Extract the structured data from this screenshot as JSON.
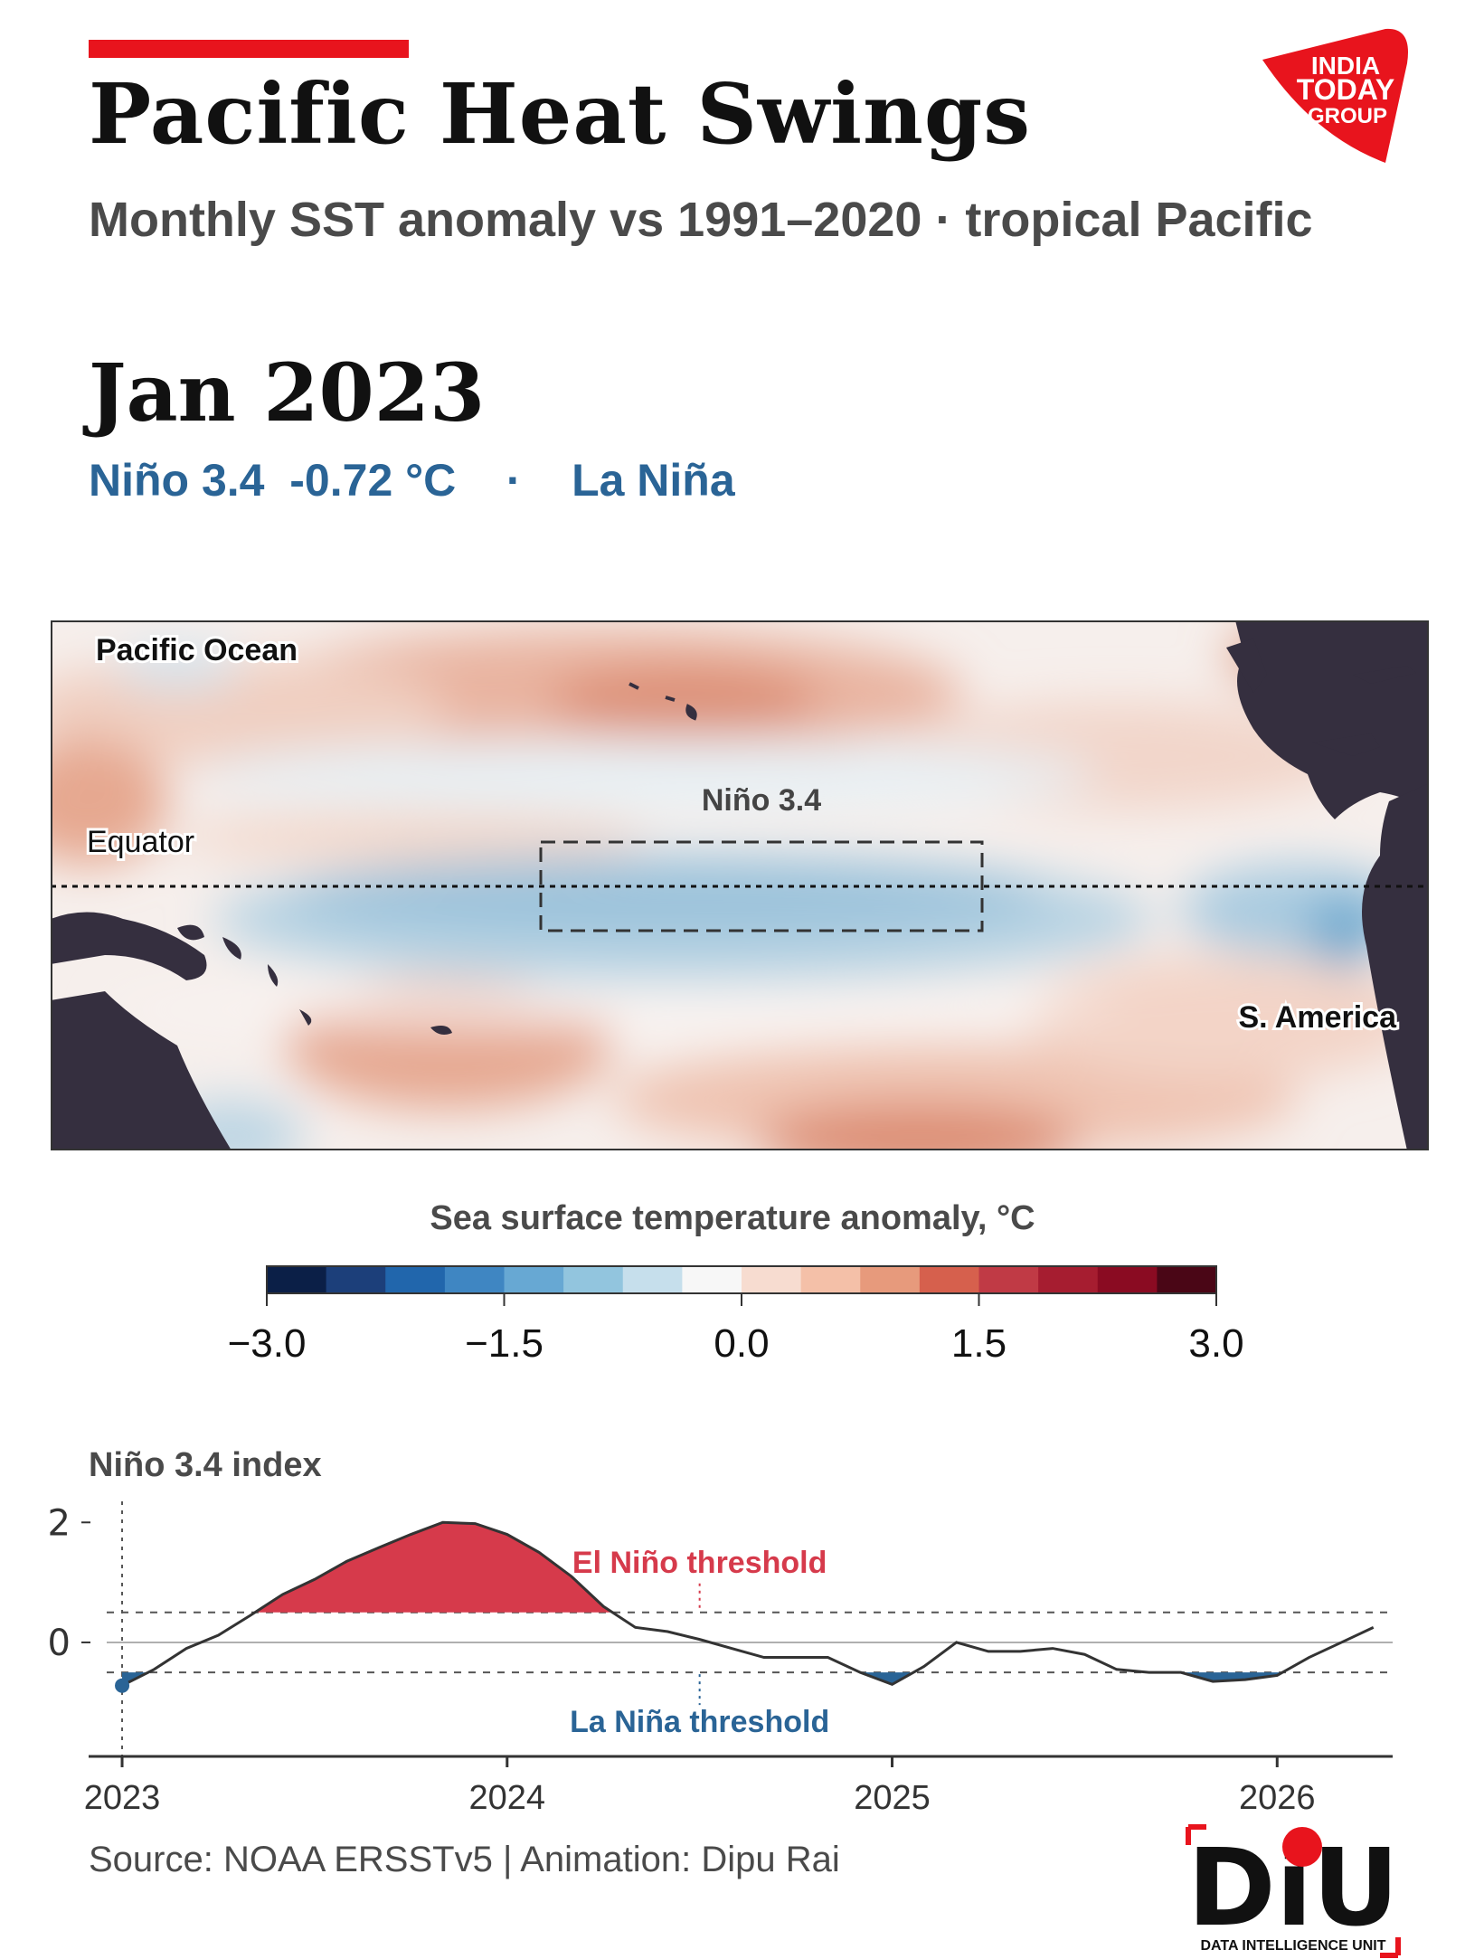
{
  "header": {
    "title": "Pacific Heat Swings",
    "subtitle": "Monthly SST anomaly vs 1991–2020  ·  tropical Pacific",
    "month": "Jan 2023",
    "index_label": "Niño 3.4",
    "index_value": "-0.72 °C",
    "separator": "·",
    "phase": "La Niña",
    "accent_color": "#e8141d",
    "status_color": "#2a6496"
  },
  "brand": {
    "logo_lines": [
      "INDIA",
      "TODAY",
      "GROUP"
    ],
    "logo_color": "#e8141d",
    "footer_logo": "DiU",
    "footer_logo_caption": "DATA INTELLIGENCE UNIT"
  },
  "map": {
    "labels": {
      "ocean": "Pacific Ocean",
      "equator": "Equator",
      "box": "Niño 3.4",
      "continent": "S. America"
    },
    "land_color": "#352f3f"
  },
  "colorbar": {
    "title": "Sea surface temperature anomaly, °C",
    "ticks": [
      "−3.0",
      "−1.5",
      "0.0",
      "1.5",
      "3.0"
    ],
    "range": [
      -3.0,
      3.0
    ],
    "colors": [
      "#0b1f47",
      "#1c3f7a",
      "#2166ac",
      "#3f86c2",
      "#67a8d3",
      "#92c5de",
      "#c6dfec",
      "#f7f7f7",
      "#f7dcd0",
      "#f4c0a8",
      "#e79a7c",
      "#d6604d",
      "#c03a45",
      "#a61d30",
      "#8a0b22",
      "#4a0616"
    ]
  },
  "chart_data": {
    "type": "area",
    "title": "Niño 3.4 index",
    "x_ticks": [
      "2023",
      "2024",
      "2025",
      "2026"
    ],
    "y_ticks": [
      "2",
      "0"
    ],
    "ylim": [
      -1.9,
      2.2
    ],
    "xlim": [
      2022.96,
      2026.3
    ],
    "thresholds": [
      {
        "name": "El Niño threshold",
        "value": 0.5,
        "color": "#d63a4b"
      },
      {
        "name": "La Niña threshold",
        "value": -0.5,
        "color": "#2a6496"
      }
    ],
    "current": {
      "x": 2023.0,
      "y": -0.72
    },
    "series": [
      {
        "x": [
          2023.0,
          2023.083,
          2023.167,
          2023.25,
          2023.333,
          2023.417,
          2023.5,
          2023.583,
          2023.667,
          2023.75,
          2023.833,
          2023.917,
          2024.0,
          2024.083,
          2024.167,
          2024.25,
          2024.333,
          2024.417,
          2024.5,
          2024.583,
          2024.667,
          2024.75,
          2024.833,
          2024.917,
          2025.0,
          2025.083,
          2025.167,
          2025.25,
          2025.333,
          2025.417,
          2025.5,
          2025.583,
          2025.667,
          2025.75,
          2025.833,
          2025.917,
          2026.0,
          2026.083,
          2026.167,
          2026.25
        ],
        "y": [
          -0.72,
          -0.45,
          -0.1,
          0.12,
          0.45,
          0.8,
          1.05,
          1.35,
          1.58,
          1.8,
          2.0,
          1.98,
          1.8,
          1.5,
          1.1,
          0.6,
          0.25,
          0.18,
          0.05,
          -0.1,
          -0.25,
          -0.25,
          -0.25,
          -0.5,
          -0.7,
          -0.4,
          0.0,
          -0.15,
          -0.15,
          -0.1,
          -0.2,
          -0.45,
          -0.5,
          -0.5,
          -0.65,
          -0.62,
          -0.55,
          -0.25,
          0.0,
          0.25
        ]
      }
    ]
  },
  "footer": {
    "source": "Source: NOAA ERSSTv5  |  Animation: Dipu Rai"
  }
}
